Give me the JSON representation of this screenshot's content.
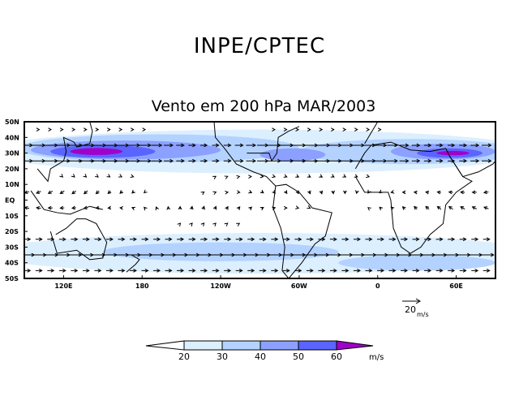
{
  "header": {
    "title": "INPE/CPTEC",
    "subtitle": "Vento em 200 hPa MAR/2003"
  },
  "map": {
    "lat_labels": [
      "50N",
      "40N",
      "30N",
      "20N",
      "10N",
      "EQ",
      "10S",
      "20S",
      "30S",
      "40S",
      "50S"
    ],
    "lon_labels": [
      "120E",
      "180",
      "120W",
      "60W",
      "0",
      "60E"
    ],
    "reference_vector": {
      "value": "20",
      "units": "m/s"
    }
  },
  "legend": {
    "levels": [
      "20",
      "30",
      "40",
      "50",
      "60"
    ],
    "units": "m/s",
    "colors": [
      "#ffffff",
      "#dcefff",
      "#b4d2ff",
      "#8ca0ff",
      "#5a64ff",
      "#a000c8"
    ]
  },
  "chart_data": {
    "type": "heatmap",
    "title": "Vento em 200 hPa MAR/2003",
    "variable": "wind speed",
    "units": "m/s",
    "contour_levels": [
      20,
      30,
      40,
      50,
      60
    ],
    "lat_range": [
      -50,
      50
    ],
    "lon_range": [
      90,
      450
    ],
    "features": [
      {
        "name": "NH subtropical jet core",
        "lat": 30,
        "lon": 140,
        "max_speed": 60
      },
      {
        "name": "NH jet Africa/Arabia",
        "lat": 30,
        "lon": 45,
        "max_speed": 60
      },
      {
        "name": "SH jet",
        "lat": -35,
        "speed_range": [
          20,
          40
        ]
      }
    ]
  }
}
